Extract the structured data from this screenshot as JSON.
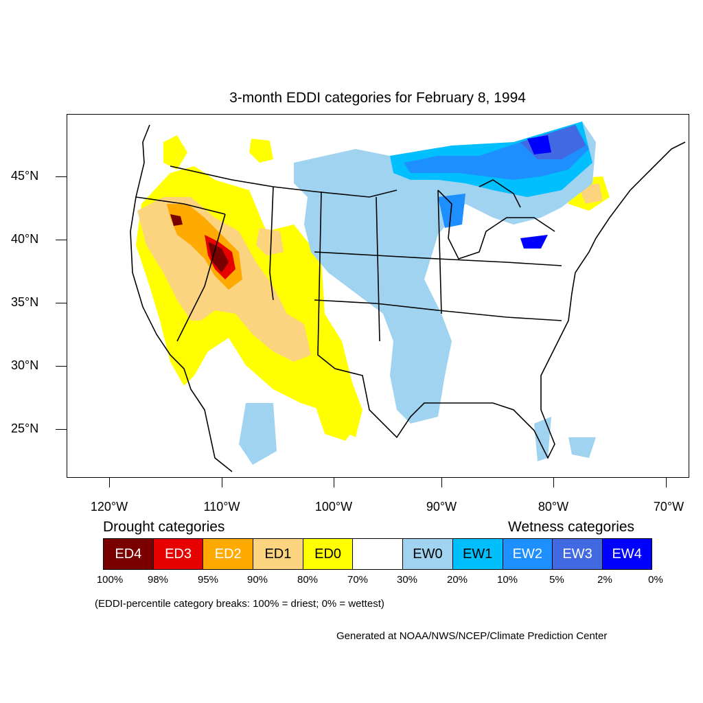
{
  "title": "3-month EDDI categories for February 8, 1994",
  "lat_labels": [
    "45°N",
    "40°N",
    "35°N",
    "30°N",
    "25°N"
  ],
  "lon_labels": [
    "120°W",
    "110°W",
    "100°W",
    "90°W",
    "80°W",
    "70°W"
  ],
  "legend": {
    "drought_heading": "Drought categories",
    "wetness_heading": "Wetness categories",
    "categories": [
      {
        "label": "ED4",
        "color": "#7a0000",
        "text_color": "#ffffff"
      },
      {
        "label": "ED3",
        "color": "#e60000",
        "text_color": "#ffffff"
      },
      {
        "label": "ED2",
        "color": "#ffaa00",
        "text_color": "#ffffff"
      },
      {
        "label": "ED1",
        "color": "#fcd37f",
        "text_color": "#000000"
      },
      {
        "label": "ED0",
        "color": "#ffff00",
        "text_color": "#000000"
      },
      {
        "label": "",
        "color": "#ffffff",
        "text_color": "#000000"
      },
      {
        "label": "EW0",
        "color": "#9fd3f0",
        "text_color": "#000000"
      },
      {
        "label": "EW1",
        "color": "#00bfff",
        "text_color": "#000000"
      },
      {
        "label": "EW2",
        "color": "#1e8fff",
        "text_color": "#ffffff"
      },
      {
        "label": "EW3",
        "color": "#4169e1",
        "text_color": "#ffffff"
      },
      {
        "label": "EW4",
        "color": "#0000ff",
        "text_color": "#ffffff"
      }
    ],
    "breaks": [
      "100%",
      "98%",
      "95%",
      "90%",
      "80%",
      "70%",
      "30%",
      "20%",
      "10%",
      "5%",
      "2%",
      "0%"
    ]
  },
  "note": "(EDDI-percentile category breaks: 100% = driest; 0% = wettest)",
  "credit": "Generated at NOAA/NWS/NCEP/Climate Prediction Center"
}
